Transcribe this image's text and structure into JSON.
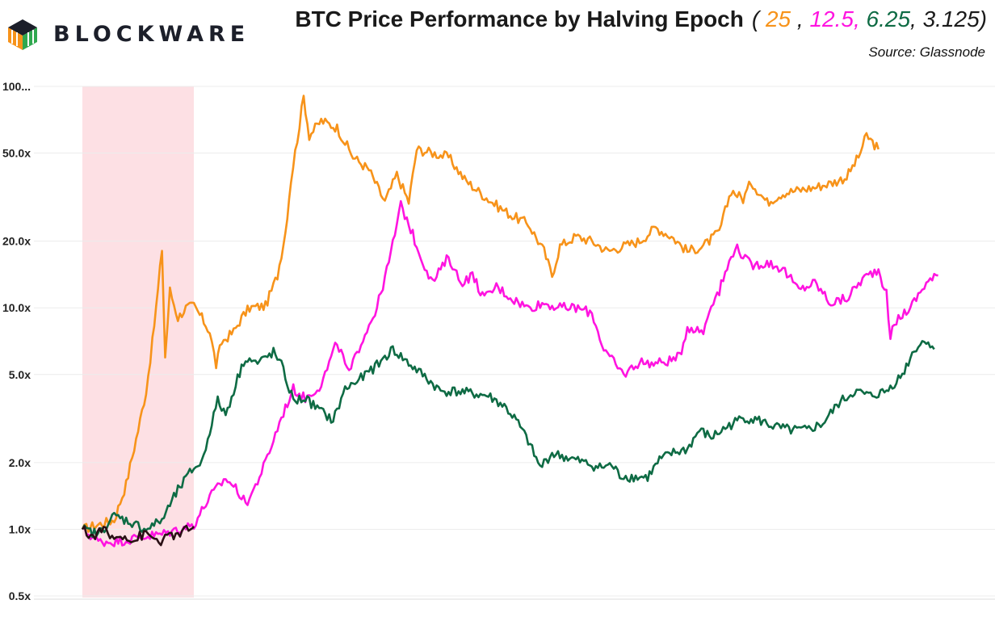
{
  "brand": {
    "name": "BLOCKWARE",
    "logo_colors": [
      "#f7931a",
      "#2fa84f",
      "#1c1f2a"
    ]
  },
  "header": {
    "title": "BTC Price Performance by Halving Epoch",
    "source": "Source: Glassnode"
  },
  "chart_data": {
    "type": "line",
    "title": "BTC Price Performance by Halving Epoch",
    "subtitle": "( 25 , 12.5, 6.25 , 3.125)",
    "source": "Source: Glassnode",
    "xlabel": "",
    "ylabel": "",
    "yscale": "log",
    "ylim": [
      0.5,
      100
    ],
    "xlim": [
      0,
      1400
    ],
    "x_unit": "days since halving",
    "grid": "horizontal",
    "y_ticks": [
      {
        "value": 100,
        "label": "100..."
      },
      {
        "value": 50,
        "label": "50.0x"
      },
      {
        "value": 20,
        "label": "20.0x"
      },
      {
        "value": 10,
        "label": "10.0x"
      },
      {
        "value": 5,
        "label": "5.0x"
      },
      {
        "value": 2,
        "label": "2.0x"
      },
      {
        "value": 1,
        "label": "1.0x"
      },
      {
        "value": 0.5,
        "label": "0.5x"
      }
    ],
    "shaded_region": {
      "x_start": 0,
      "x_end": 140,
      "color": "#fde0e4"
    },
    "series": [
      {
        "name": "25",
        "label": "25",
        "color": "#f7931a",
        "points": [
          [
            0,
            1.0
          ],
          [
            20,
            1.05
          ],
          [
            40,
            1.1
          ],
          [
            55,
            1.6
          ],
          [
            70,
            2.8
          ],
          [
            80,
            4.2
          ],
          [
            88,
            7.0
          ],
          [
            95,
            12.0
          ],
          [
            100,
            18.5
          ],
          [
            104,
            6.0
          ],
          [
            110,
            12.0
          ],
          [
            120,
            9.0
          ],
          [
            130,
            10.0
          ],
          [
            140,
            10.2
          ],
          [
            150,
            9.0
          ],
          [
            160,
            7.8
          ],
          [
            168,
            5.5
          ],
          [
            175,
            7.0
          ],
          [
            190,
            7.8
          ],
          [
            200,
            9.0
          ],
          [
            210,
            10.0
          ],
          [
            230,
            10.2
          ],
          [
            245,
            14.0
          ],
          [
            255,
            22.0
          ],
          [
            262,
            38.0
          ],
          [
            270,
            58.0
          ],
          [
            278,
            90.0
          ],
          [
            285,
            60.0
          ],
          [
            300,
            70.0
          ],
          [
            320,
            65.0
          ],
          [
            340,
            48.0
          ],
          [
            360,
            42.0
          ],
          [
            380,
            30.0
          ],
          [
            395,
            40.0
          ],
          [
            410,
            30.0
          ],
          [
            420,
            52.0
          ],
          [
            440,
            50.0
          ],
          [
            460,
            48.0
          ],
          [
            480,
            38.0
          ],
          [
            500,
            33.0
          ],
          [
            520,
            29.0
          ],
          [
            540,
            26.0
          ],
          [
            560,
            24.0
          ],
          [
            580,
            18.0
          ],
          [
            590,
            14.0
          ],
          [
            600,
            19.0
          ],
          [
            620,
            21.0
          ],
          [
            640,
            20.0
          ],
          [
            660,
            18.0
          ],
          [
            680,
            19.0
          ],
          [
            700,
            20.0
          ],
          [
            720,
            23.0
          ],
          [
            740,
            21.0
          ],
          [
            760,
            18.0
          ],
          [
            780,
            19.0
          ],
          [
            800,
            22.0
          ],
          [
            815,
            34.0
          ],
          [
            830,
            31.0
          ],
          [
            840,
            37.0
          ],
          [
            860,
            30.0
          ],
          [
            880,
            33.0
          ],
          [
            900,
            34.0
          ],
          [
            920,
            35.0
          ],
          [
            945,
            37.0
          ],
          [
            960,
            39.0
          ],
          [
            975,
            48.0
          ],
          [
            985,
            60.0
          ],
          [
            1000,
            52.0
          ]
        ]
      },
      {
        "name": "12.5",
        "label": "12.5,",
        "color": "#ff14e0",
        "points": [
          [
            0,
            1.0
          ],
          [
            20,
            0.88
          ],
          [
            40,
            0.88
          ],
          [
            60,
            0.9
          ],
          [
            80,
            0.93
          ],
          [
            100,
            0.95
          ],
          [
            120,
            1.0
          ],
          [
            140,
            1.05
          ],
          [
            160,
            1.4
          ],
          [
            180,
            1.7
          ],
          [
            195,
            1.5
          ],
          [
            205,
            1.3
          ],
          [
            215,
            1.5
          ],
          [
            230,
            2.0
          ],
          [
            250,
            3.2
          ],
          [
            265,
            4.3
          ],
          [
            280,
            3.9
          ],
          [
            300,
            4.5
          ],
          [
            320,
            7.0
          ],
          [
            335,
            5.0
          ],
          [
            350,
            7.0
          ],
          [
            370,
            10.0
          ],
          [
            385,
            16.0
          ],
          [
            400,
            29.0
          ],
          [
            410,
            24.0
          ],
          [
            425,
            17.0
          ],
          [
            440,
            13.0
          ],
          [
            460,
            17.0
          ],
          [
            475,
            13.0
          ],
          [
            490,
            14.0
          ],
          [
            505,
            11.0
          ],
          [
            520,
            12.5
          ],
          [
            540,
            11.0
          ],
          [
            560,
            10.0
          ],
          [
            580,
            10.5
          ],
          [
            600,
            10.0
          ],
          [
            620,
            10.0
          ],
          [
            640,
            9.5
          ],
          [
            655,
            6.5
          ],
          [
            670,
            5.5
          ],
          [
            680,
            5.0
          ],
          [
            700,
            5.7
          ],
          [
            720,
            5.6
          ],
          [
            740,
            5.8
          ],
          [
            750,
            6.0
          ],
          [
            760,
            8.2
          ],
          [
            780,
            7.8
          ],
          [
            790,
            10.5
          ],
          [
            800,
            12.0
          ],
          [
            820,
            19.0
          ],
          [
            840,
            15.5
          ],
          [
            860,
            16.0
          ],
          [
            880,
            15.0
          ],
          [
            900,
            12.0
          ],
          [
            920,
            13.0
          ],
          [
            940,
            10.5
          ],
          [
            960,
            11.0
          ],
          [
            980,
            13.5
          ],
          [
            1000,
            15.0
          ],
          [
            1010,
            11.5
          ],
          [
            1015,
            7.5
          ],
          [
            1025,
            9.0
          ],
          [
            1040,
            10.0
          ],
          [
            1060,
            13.0
          ],
          [
            1075,
            14.0
          ]
        ]
      },
      {
        "name": "6.25",
        "label": "6.25",
        "color": "#0e6b44",
        "points": [
          [
            0,
            1.0
          ],
          [
            20,
            0.95
          ],
          [
            40,
            1.15
          ],
          [
            60,
            1.08
          ],
          [
            80,
            1.0
          ],
          [
            100,
            1.1
          ],
          [
            120,
            1.5
          ],
          [
            140,
            1.9
          ],
          [
            150,
            2.0
          ],
          [
            160,
            2.8
          ],
          [
            170,
            3.8
          ],
          [
            180,
            3.3
          ],
          [
            195,
            4.8
          ],
          [
            205,
            6.0
          ],
          [
            220,
            5.6
          ],
          [
            240,
            6.3
          ],
          [
            250,
            5.5
          ],
          [
            265,
            3.8
          ],
          [
            280,
            3.9
          ],
          [
            300,
            3.4
          ],
          [
            315,
            3.1
          ],
          [
            330,
            4.3
          ],
          [
            350,
            4.8
          ],
          [
            370,
            5.5
          ],
          [
            390,
            6.5
          ],
          [
            410,
            5.6
          ],
          [
            430,
            4.9
          ],
          [
            450,
            4.2
          ],
          [
            470,
            4.2
          ],
          [
            490,
            4.1
          ],
          [
            510,
            4.0
          ],
          [
            530,
            3.6
          ],
          [
            545,
            3.1
          ],
          [
            560,
            2.5
          ],
          [
            575,
            1.9
          ],
          [
            590,
            2.2
          ],
          [
            610,
            2.1
          ],
          [
            630,
            2.0
          ],
          [
            650,
            1.9
          ],
          [
            665,
            1.95
          ],
          [
            675,
            1.75
          ],
          [
            690,
            1.72
          ],
          [
            710,
            1.72
          ],
          [
            725,
            2.05
          ],
          [
            740,
            2.2
          ],
          [
            760,
            2.3
          ],
          [
            775,
            2.8
          ],
          [
            790,
            2.6
          ],
          [
            810,
            2.9
          ],
          [
            830,
            3.2
          ],
          [
            850,
            3.1
          ],
          [
            870,
            2.9
          ],
          [
            890,
            2.8
          ],
          [
            910,
            2.8
          ],
          [
            930,
            3.0
          ],
          [
            950,
            3.7
          ],
          [
            970,
            4.2
          ],
          [
            990,
            4.0
          ],
          [
            1010,
            4.2
          ],
          [
            1030,
            5.0
          ],
          [
            1045,
            6.5
          ],
          [
            1060,
            7.2
          ],
          [
            1070,
            6.5
          ]
        ]
      },
      {
        "name": "3.125",
        "label": "3.125",
        "color": "#2a1015",
        "points": [
          [
            0,
            1.0
          ],
          [
            8,
            0.95
          ],
          [
            16,
            0.92
          ],
          [
            24,
            1.02
          ],
          [
            32,
            0.95
          ],
          [
            40,
            0.9
          ],
          [
            48,
            0.95
          ],
          [
            56,
            0.93
          ],
          [
            64,
            0.88
          ],
          [
            72,
            0.93
          ],
          [
            80,
            0.95
          ],
          [
            88,
            0.92
          ],
          [
            96,
            0.88
          ],
          [
            104,
            0.9
          ],
          [
            112,
            0.95
          ],
          [
            120,
            0.93
          ],
          [
            128,
            0.98
          ],
          [
            136,
            1.02
          ],
          [
            140,
            1.03
          ]
        ]
      }
    ]
  }
}
